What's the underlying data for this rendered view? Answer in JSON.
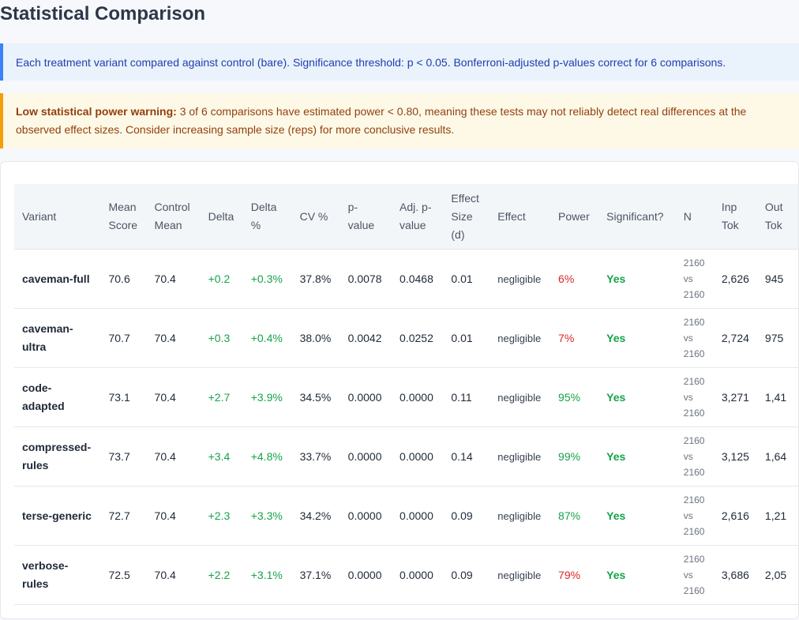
{
  "page": {
    "title": "Statistical Comparison"
  },
  "info": {
    "text": "Each treatment variant compared against control (bare). Significance threshold: p < 0.05. Bonferroni-adjusted p-values correct for 6 comparisons."
  },
  "warning": {
    "label": "Low statistical power warning:",
    "text": " 3 of 6 comparisons have estimated power < 0.80, meaning these tests may not reliably detect real differences at the observed effect sizes. Consider increasing sample size (reps) for more conclusive results."
  },
  "table": {
    "headers": {
      "variant": "Variant",
      "mean_score": "Mean Score",
      "control_mean": "Control Mean",
      "delta": "Delta",
      "delta_pct": "Delta %",
      "cv": "CV %",
      "p_value": "p-value",
      "adj_p": "Adj. p-value",
      "effect_size": "Effect Size (d)",
      "effect": "Effect",
      "power": "Power",
      "significant": "Significant?",
      "n": "N",
      "inp_tok": "Inp Tok",
      "out_tok": "Out Tok"
    },
    "rows": [
      {
        "variant": "caveman-full",
        "mean": "70.6",
        "control": "70.4",
        "delta": "+0.2",
        "delta_pct": "+0.3%",
        "cv": "37.8%",
        "p": "0.0078",
        "adj_p": "0.0468",
        "d": "0.01",
        "effect": "negligible",
        "power": "6%",
        "power_level": "low",
        "sig": "Yes",
        "n_a": "2160",
        "n_vs": "vs",
        "n_b": "2160",
        "inp_tok": "2,626",
        "out_tok": "945"
      },
      {
        "variant": "caveman-ultra",
        "mean": "70.7",
        "control": "70.4",
        "delta": "+0.3",
        "delta_pct": "+0.4%",
        "cv": "38.0%",
        "p": "0.0042",
        "adj_p": "0.0252",
        "d": "0.01",
        "effect": "negligible",
        "power": "7%",
        "power_level": "low",
        "sig": "Yes",
        "n_a": "2160",
        "n_vs": "vs",
        "n_b": "2160",
        "inp_tok": "2,724",
        "out_tok": "975"
      },
      {
        "variant": "code-adapted",
        "mean": "73.1",
        "control": "70.4",
        "delta": "+2.7",
        "delta_pct": "+3.9%",
        "cv": "34.5%",
        "p": "0.0000",
        "adj_p": "0.0000",
        "d": "0.11",
        "effect": "negligible",
        "power": "95%",
        "power_level": "ok",
        "sig": "Yes",
        "n_a": "2160",
        "n_vs": "vs",
        "n_b": "2160",
        "inp_tok": "3,271",
        "out_tok": "1,41"
      },
      {
        "variant": "compressed-rules",
        "mean": "73.7",
        "control": "70.4",
        "delta": "+3.4",
        "delta_pct": "+4.8%",
        "cv": "33.7%",
        "p": "0.0000",
        "adj_p": "0.0000",
        "d": "0.14",
        "effect": "negligible",
        "power": "99%",
        "power_level": "ok",
        "sig": "Yes",
        "n_a": "2160",
        "n_vs": "vs",
        "n_b": "2160",
        "inp_tok": "3,125",
        "out_tok": "1,64"
      },
      {
        "variant": "terse-generic",
        "mean": "72.7",
        "control": "70.4",
        "delta": "+2.3",
        "delta_pct": "+3.3%",
        "cv": "34.2%",
        "p": "0.0000",
        "adj_p": "0.0000",
        "d": "0.09",
        "effect": "negligible",
        "power": "87%",
        "power_level": "ok",
        "sig": "Yes",
        "n_a": "2160",
        "n_vs": "vs",
        "n_b": "2160",
        "inp_tok": "2,616",
        "out_tok": "1,21"
      },
      {
        "variant": "verbose-rules",
        "mean": "72.5",
        "control": "70.4",
        "delta": "+2.2",
        "delta_pct": "+3.1%",
        "cv": "37.1%",
        "p": "0.0000",
        "adj_p": "0.0000",
        "d": "0.09",
        "effect": "negligible",
        "power": "79%",
        "power_level": "low",
        "sig": "Yes",
        "n_a": "2160",
        "n_vs": "vs",
        "n_b": "2160",
        "inp_tok": "3,686",
        "out_tok": "2,05"
      }
    ]
  },
  "colors": {
    "positive": "#16a34a",
    "low_power": "#dc2626",
    "info_accent": "#3b82f6",
    "warning_accent": "#f59e0b"
  }
}
